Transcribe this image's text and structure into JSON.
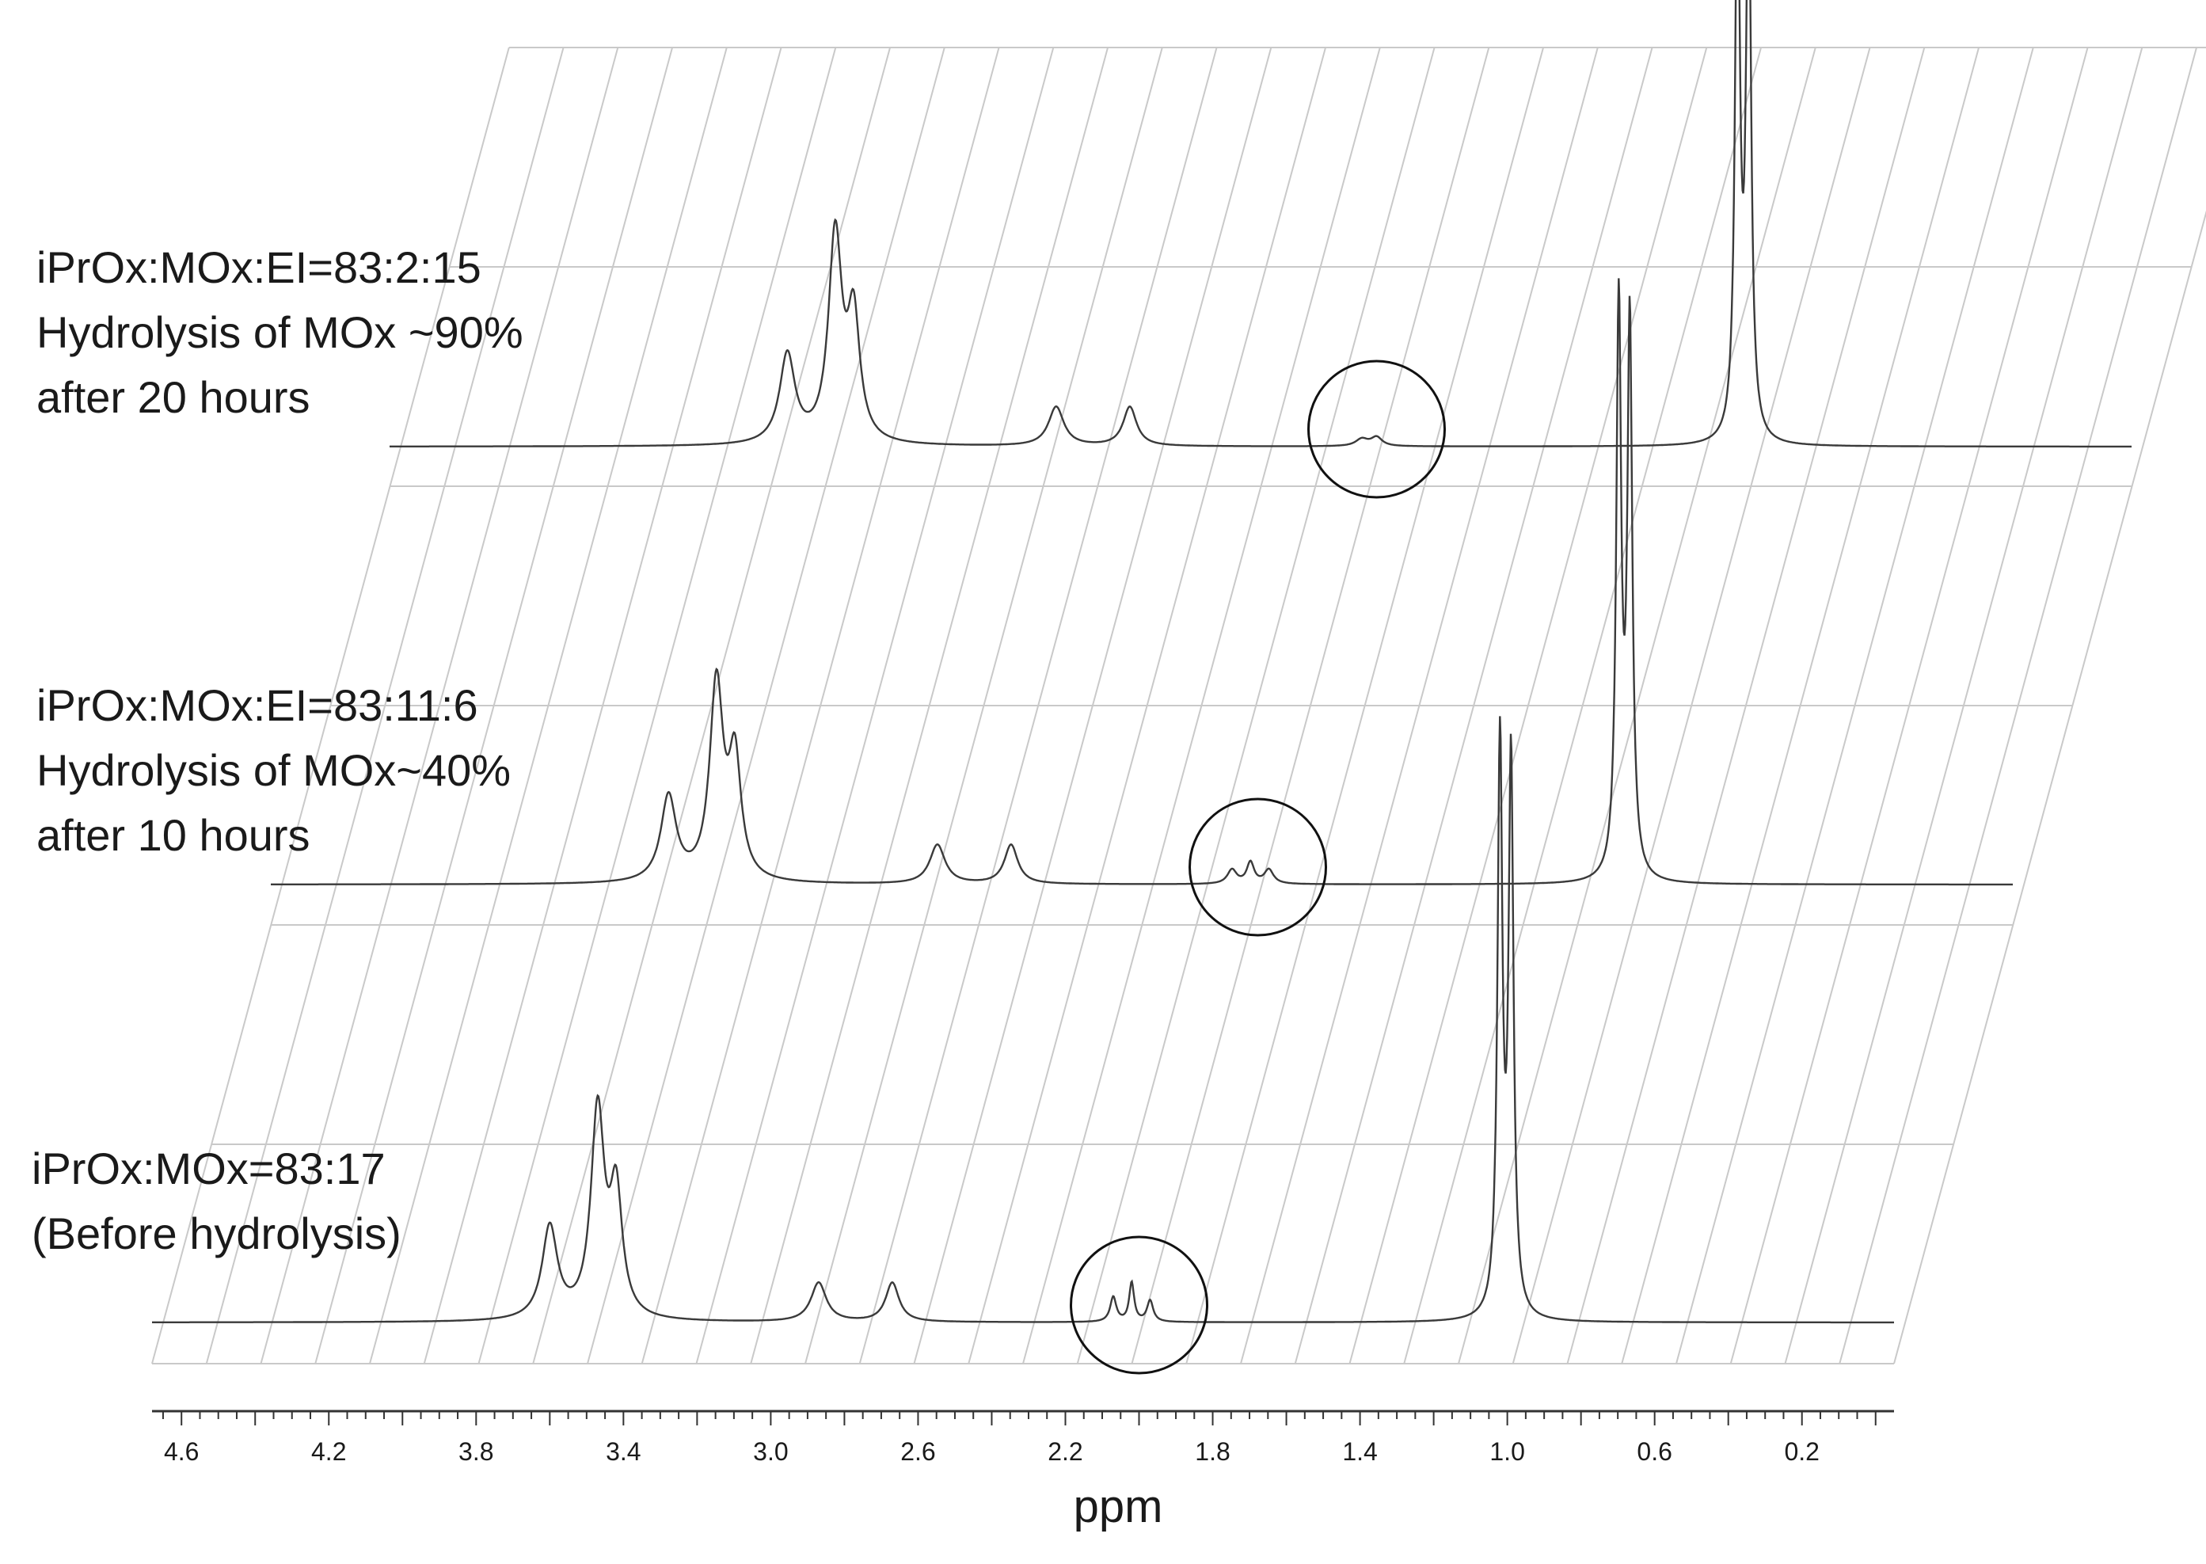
{
  "chart_data": {
    "type": "line",
    "xlabel": "ppm",
    "ylabel": "",
    "xlim": [
      4.68,
      -0.05
    ],
    "x_reversed": true,
    "grid": true,
    "legend": "none",
    "xticks": [
      4.6,
      4.2,
      3.8,
      3.4,
      3.0,
      2.6,
      2.2,
      1.8,
      1.4,
      1.0,
      0.6,
      0.2
    ],
    "xtick_labels": [
      "4.6",
      "4.2",
      "3.8",
      "3.4",
      "3.0",
      "2.6",
      "2.2",
      "1.8",
      "1.4",
      "1.0",
      "0.6",
      "0.2"
    ],
    "series": [
      {
        "label_lines": [
          "iPrOx:MOx=83:17",
          "(Before hydrolysis)"
        ],
        "peaks": [
          {
            "ppm": 3.6,
            "height": 0.26,
            "width": 0.025
          },
          {
            "ppm": 3.47,
            "height": 0.58,
            "width": 0.022
          },
          {
            "ppm": 3.42,
            "height": 0.34,
            "width": 0.02
          },
          {
            "ppm": 2.87,
            "height": 0.11,
            "width": 0.025
          },
          {
            "ppm": 2.67,
            "height": 0.11,
            "width": 0.022
          },
          {
            "ppm": 2.07,
            "height": 0.07,
            "width": 0.01
          },
          {
            "ppm": 2.02,
            "height": 0.11,
            "width": 0.008
          },
          {
            "ppm": 1.97,
            "height": 0.06,
            "width": 0.01
          },
          {
            "ppm": 1.02,
            "height": 1.6,
            "width": 0.008
          },
          {
            "ppm": 0.99,
            "height": 1.55,
            "width": 0.008
          }
        ]
      },
      {
        "label_lines": [
          "iPrOx:MOx:EI=83:11:6",
          "Hydrolysis of MOx~40%",
          "after 10 hours"
        ],
        "peaks": [
          {
            "ppm": 3.6,
            "height": 0.24,
            "width": 0.025
          },
          {
            "ppm": 3.47,
            "height": 0.55,
            "width": 0.022
          },
          {
            "ppm": 3.42,
            "height": 0.33,
            "width": 0.02
          },
          {
            "ppm": 2.87,
            "height": 0.11,
            "width": 0.025
          },
          {
            "ppm": 2.67,
            "height": 0.11,
            "width": 0.022
          },
          {
            "ppm": 2.07,
            "height": 0.04,
            "width": 0.015
          },
          {
            "ppm": 2.02,
            "height": 0.06,
            "width": 0.012
          },
          {
            "ppm": 1.97,
            "height": 0.04,
            "width": 0.015
          },
          {
            "ppm": 1.02,
            "height": 1.6,
            "width": 0.008
          },
          {
            "ppm": 0.99,
            "height": 1.55,
            "width": 0.008
          }
        ]
      },
      {
        "label_lines": [
          "iPrOx:MOx:EI=83:2:15",
          "Hydrolysis of MOx ~90%",
          "after 20 hours"
        ],
        "peaks": [
          {
            "ppm": 3.6,
            "height": 0.25,
            "width": 0.025
          },
          {
            "ppm": 3.47,
            "height": 0.58,
            "width": 0.022
          },
          {
            "ppm": 3.42,
            "height": 0.34,
            "width": 0.02
          },
          {
            "ppm": 2.87,
            "height": 0.11,
            "width": 0.025
          },
          {
            "ppm": 2.67,
            "height": 0.11,
            "width": 0.022
          },
          {
            "ppm": 2.04,
            "height": 0.02,
            "width": 0.02
          },
          {
            "ppm": 2.0,
            "height": 0.025,
            "width": 0.018
          },
          {
            "ppm": 1.02,
            "height": 1.6,
            "width": 0.008
          },
          {
            "ppm": 0.99,
            "height": 1.6,
            "width": 0.008
          }
        ]
      }
    ],
    "annotations": [
      {
        "type": "circle",
        "around_ppm": 2.0,
        "series_index": 0
      },
      {
        "type": "circle",
        "around_ppm": 2.0,
        "series_index": 1
      },
      {
        "type": "circle",
        "around_ppm": 2.0,
        "series_index": 2
      }
    ]
  }
}
